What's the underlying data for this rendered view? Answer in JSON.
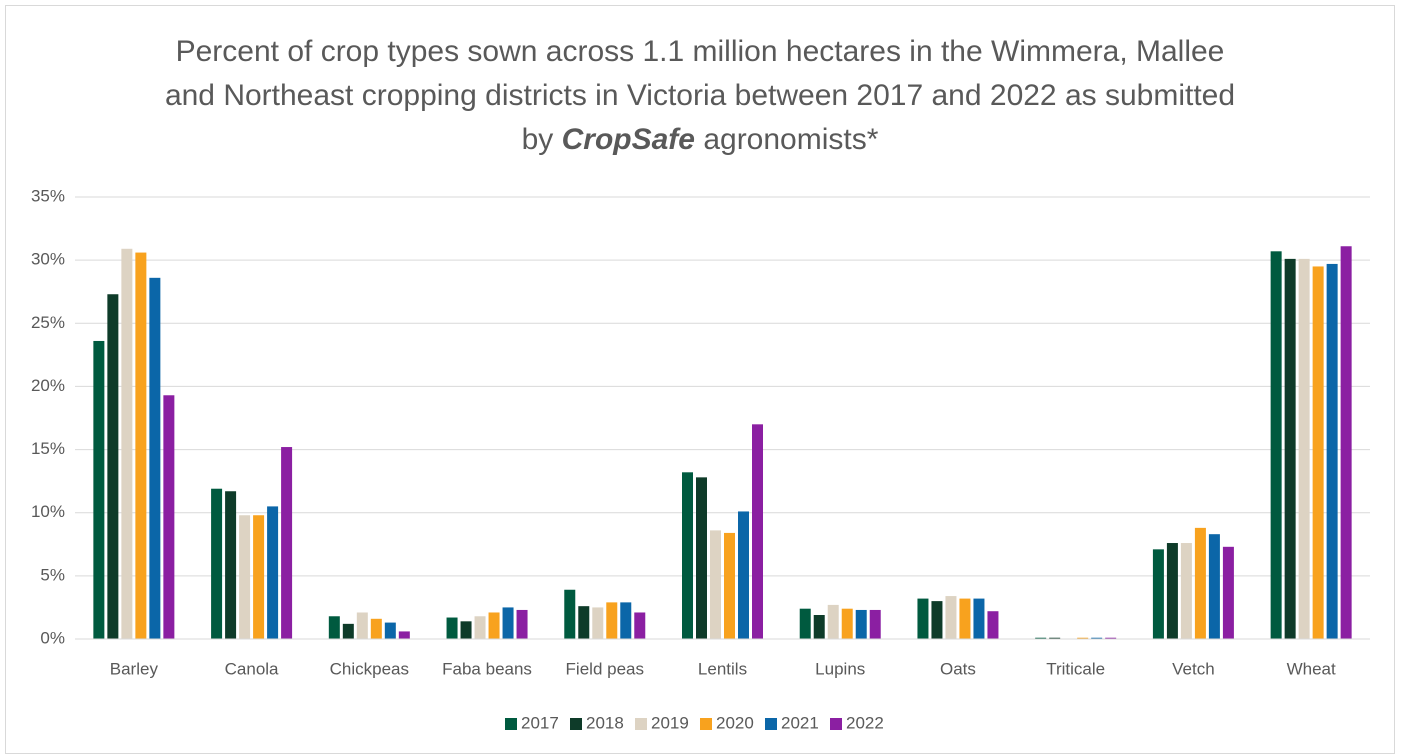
{
  "chart_data": {
    "type": "bar",
    "title": [
      "Percent of crop types sown across 1.1 million hectares in the Wimmera, Mallee and Northeast cropping districts in Victoria between 2017 and 2022 as submitted by ",
      "CropSafe",
      " agronomists*"
    ],
    "categories": [
      "Barley",
      "Canola",
      "Chickpeas",
      "Faba beans",
      "Field peas",
      "Lentils",
      "Lupins",
      "Oats",
      "Triticale",
      "Vetch",
      "Wheat"
    ],
    "series": [
      {
        "name": "2017",
        "color": "#005a3f",
        "values": [
          23.6,
          11.9,
          1.8,
          1.7,
          3.9,
          13.2,
          2.4,
          3.2,
          0.1,
          7.1,
          30.7
        ]
      },
      {
        "name": "2018",
        "color": "#0e3b29",
        "values": [
          27.3,
          11.7,
          1.2,
          1.4,
          2.6,
          12.8,
          1.9,
          3.0,
          0.1,
          7.6,
          30.1
        ]
      },
      {
        "name": "2019",
        "color": "#ddd3c3",
        "values": [
          30.9,
          9.8,
          2.1,
          1.8,
          2.5,
          8.6,
          2.7,
          3.4,
          0,
          7.6,
          30.1
        ]
      },
      {
        "name": "2020",
        "color": "#f8a21e",
        "values": [
          30.6,
          9.8,
          1.6,
          2.1,
          2.9,
          8.4,
          2.4,
          3.2,
          0.1,
          8.8,
          29.5
        ]
      },
      {
        "name": "2021",
        "color": "#0b66a8",
        "values": [
          28.6,
          10.5,
          1.3,
          2.5,
          2.9,
          10.1,
          2.3,
          3.2,
          0.1,
          8.3,
          29.7
        ]
      },
      {
        "name": "2022",
        "color": "#8b1fa2",
        "values": [
          19.3,
          15.2,
          0.6,
          2.3,
          2.1,
          17.0,
          2.3,
          2.2,
          0.1,
          7.3,
          31.1
        ]
      }
    ],
    "ylim": [
      0,
      35
    ],
    "yticks": [
      {
        "value": 0,
        "label": "0%"
      },
      {
        "value": 5,
        "label": "5%"
      },
      {
        "value": 10,
        "label": "10%"
      },
      {
        "value": 15,
        "label": "15%"
      },
      {
        "value": 20,
        "label": "20%"
      },
      {
        "value": 25,
        "label": "25%"
      },
      {
        "value": 30,
        "label": "30%"
      },
      {
        "value": 35,
        "label": "35%"
      }
    ],
    "grid": true,
    "legend": "bottom"
  }
}
